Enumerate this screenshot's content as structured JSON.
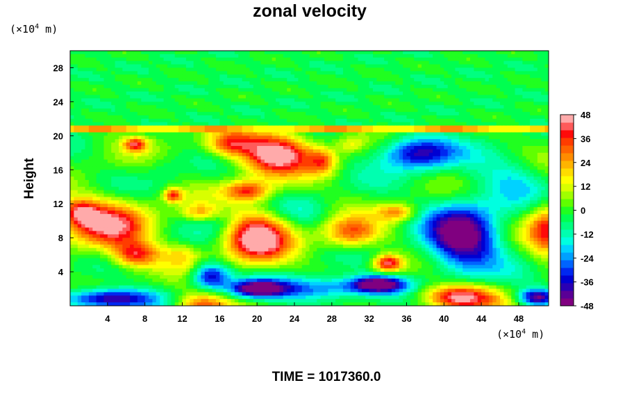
{
  "chart_data": {
    "type": "heatmap",
    "title": "zonal velocity",
    "xlabel": "",
    "ylabel": "Height",
    "x_unit_prefix": "(×10",
    "x_unit_exp": "4",
    "x_unit_suffix": " m)",
    "y_unit_prefix": "(×10",
    "y_unit_exp": "4",
    "y_unit_suffix": " m)",
    "xlim": [
      0,
      51.2
    ],
    "ylim": [
      0,
      30
    ],
    "x_ticks": [
      4,
      8,
      12,
      16,
      20,
      24,
      28,
      32,
      36,
      40,
      44,
      48
    ],
    "y_ticks": [
      4,
      8,
      12,
      16,
      20,
      24,
      28
    ],
    "colorbar": {
      "range": [
        -48,
        48
      ],
      "ticks": [
        48,
        36,
        24,
        12,
        0,
        -12,
        -24,
        -36,
        -48
      ],
      "colors": [
        "#800080",
        "#5a0096",
        "#2a00b4",
        "#0000d2",
        "#0028f0",
        "#0064ff",
        "#00a0ff",
        "#00d2ff",
        "#00ffe0",
        "#00ffb0",
        "#00ff80",
        "#00ff50",
        "#20ff20",
        "#60ff00",
        "#a0ff00",
        "#d8ff00",
        "#ffff00",
        "#ffdc00",
        "#ffb400",
        "#ff8c00",
        "#ff6400",
        "#ff3c00",
        "#ff0a0a",
        "#ff5a5a",
        "#ffaaaa"
      ]
    },
    "blobs": [
      {
        "x": 4,
        "y": 9.5,
        "rx": 4.5,
        "ry": 3,
        "v": 40
      },
      {
        "x": 7,
        "y": 6,
        "rx": 2.5,
        "ry": 1.5,
        "v": 35
      },
      {
        "x": 1,
        "y": 11,
        "rx": 2,
        "ry": 1.5,
        "v": 30
      },
      {
        "x": 22,
        "y": 18,
        "rx": 4,
        "ry": 2.5,
        "v": 50
      },
      {
        "x": 17,
        "y": 19,
        "rx": 2.5,
        "ry": 1.5,
        "v": 30
      },
      {
        "x": 20,
        "y": 8,
        "rx": 3.5,
        "ry": 3,
        "v": 50
      },
      {
        "x": 19,
        "y": 13.5,
        "rx": 2.5,
        "ry": 1.2,
        "v": 35
      },
      {
        "x": 30,
        "y": 8.5,
        "rx": 3,
        "ry": 1.8,
        "v": 32
      },
      {
        "x": 34,
        "y": 5,
        "rx": 1.5,
        "ry": 1,
        "v": 45
      },
      {
        "x": 7,
        "y": 19,
        "rx": 1.2,
        "ry": 0.8,
        "v": 35
      },
      {
        "x": 11,
        "y": 13,
        "rx": 1,
        "ry": 0.8,
        "v": 35
      },
      {
        "x": 14,
        "y": 11,
        "rx": 2,
        "ry": 1,
        "v": 20
      },
      {
        "x": 27,
        "y": 17,
        "rx": 1.5,
        "ry": 1.5,
        "v": 25
      },
      {
        "x": 35,
        "y": 11,
        "rx": 2,
        "ry": 1,
        "v": 25
      },
      {
        "x": 41.5,
        "y": 1,
        "rx": 4,
        "ry": 1.5,
        "v": 50
      },
      {
        "x": 14,
        "y": 0,
        "rx": 3,
        "ry": 1.5,
        "v": 35
      },
      {
        "x": 51,
        "y": 9,
        "rx": 2,
        "ry": 3,
        "v": 35
      },
      {
        "x": 12,
        "y": 6,
        "rx": 2,
        "ry": 1.5,
        "v": 15
      },
      {
        "x": 30,
        "y": 19,
        "rx": 1.5,
        "ry": 1,
        "v": 12
      },
      {
        "x": 42,
        "y": 8,
        "rx": 4,
        "ry": 4,
        "v": -50
      },
      {
        "x": 37,
        "y": 18,
        "rx": 4,
        "ry": 2,
        "v": -40
      },
      {
        "x": 15,
        "y": 3.5,
        "rx": 2,
        "ry": 1.5,
        "v": -40
      },
      {
        "x": 27,
        "y": 2,
        "rx": 6,
        "ry": 1.5,
        "v": -30
      },
      {
        "x": 20,
        "y": 2,
        "rx": 3,
        "ry": 1,
        "v": -45
      },
      {
        "x": 33,
        "y": 2.5,
        "rx": 3,
        "ry": 1,
        "v": -50
      },
      {
        "x": 4,
        "y": 0.8,
        "rx": 5,
        "ry": 1.2,
        "v": -48
      },
      {
        "x": 50,
        "y": 1,
        "rx": 2,
        "ry": 1,
        "v": -45
      },
      {
        "x": 16,
        "y": 10,
        "rx": 2,
        "ry": 2,
        "v": -10
      },
      {
        "x": 25,
        "y": 11,
        "rx": 3,
        "ry": 2,
        "v": -8
      },
      {
        "x": 47,
        "y": 15,
        "rx": 4,
        "ry": 3,
        "v": -15
      },
      {
        "x": 10,
        "y": 16,
        "rx": 2,
        "ry": 2,
        "v": -6
      }
    ]
  },
  "footer": {
    "time_text": "TIME = 1017360.0"
  }
}
